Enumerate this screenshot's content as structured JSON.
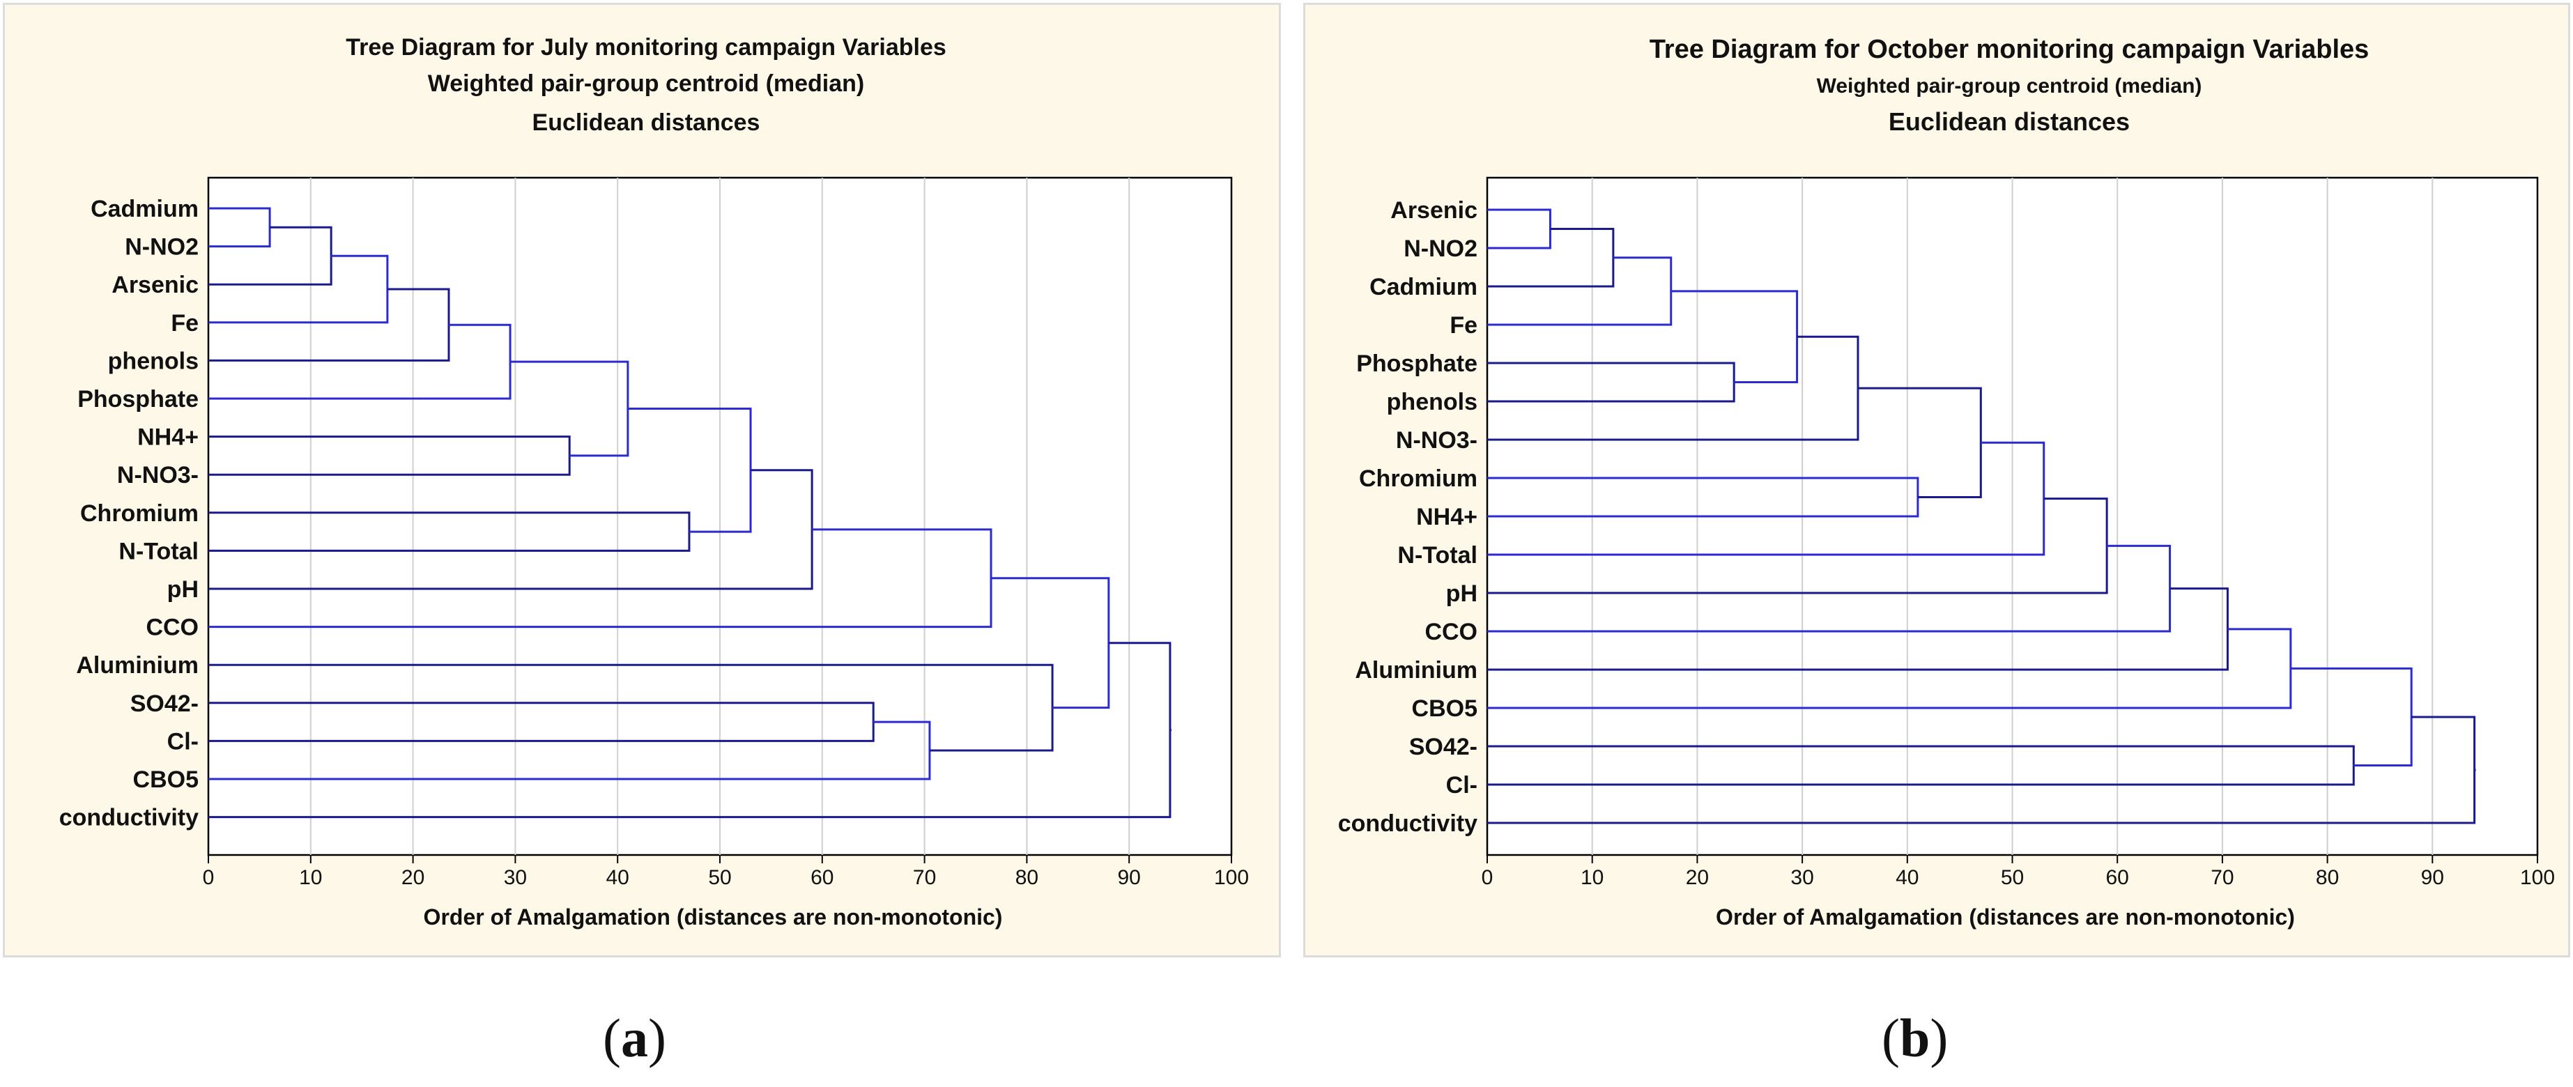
{
  "captions": {
    "a": "a",
    "b": "b"
  },
  "chart_data": [
    {
      "type": "dendrogram",
      "title": "Tree Diagram for July  monitoring campaign Variables",
      "subtitle1": "Weighted pair-group centroid (median)",
      "subtitle2": "Euclidean distances",
      "xlabel": "Order of Amalgamation (distances are non-monotonic)",
      "xlim": [
        0,
        100
      ],
      "xticks": [
        0,
        10,
        20,
        30,
        40,
        50,
        60,
        70,
        80,
        90,
        100
      ],
      "grid": true,
      "leaves": [
        "Cadmium",
        "N-NO2",
        "Arsenic",
        "Fe",
        "phenols",
        "Phosphate",
        "NH4+",
        "N-NO3-",
        "Chromium",
        "N-Total",
        "pH",
        "CCO",
        "Aluminium",
        "SO42-",
        "Cl-",
        "CBO5",
        "conductivity"
      ],
      "merges": [
        {
          "left": "Cadmium",
          "right": "N-NO2",
          "distance": 6
        },
        {
          "left": "m0",
          "right": "Arsenic",
          "distance": 12
        },
        {
          "left": "m1",
          "right": "Fe",
          "distance": 17.5
        },
        {
          "left": "m2",
          "right": "phenols",
          "distance": 23.5
        },
        {
          "left": "m3",
          "right": "Phosphate",
          "distance": 29.5
        },
        {
          "left": "NH4+",
          "right": "N-NO3-",
          "distance": 35.3
        },
        {
          "left": "m4",
          "right": "m5",
          "distance": 41
        },
        {
          "left": "Chromium",
          "right": "N-Total",
          "distance": 47
        },
        {
          "left": "m6",
          "right": "m7",
          "distance": 53
        },
        {
          "left": "m8",
          "right": "pH",
          "distance": 59
        },
        {
          "left": "m9",
          "right": "CCO",
          "distance": 76.5
        },
        {
          "left": "SO42-",
          "right": "Cl-",
          "distance": 65
        },
        {
          "left": "m11",
          "right": "CBO5",
          "distance": 70.5
        },
        {
          "left": "Aluminium",
          "right": "m12",
          "distance": 82.5
        },
        {
          "left": "m10",
          "right": "m13",
          "distance": 88
        },
        {
          "left": "m14",
          "right": "conductivity",
          "distance": 94
        }
      ]
    },
    {
      "type": "dendrogram",
      "title": "Tree Diagram for October monitoring campaign  Variables",
      "subtitle1": "Weighted pair-group centroid (median)",
      "subtitle2": "Euclidean distances",
      "xlabel": "Order of Amalgamation (distances are non-monotonic)",
      "xlim": [
        0,
        100
      ],
      "xticks": [
        0,
        10,
        20,
        30,
        40,
        50,
        60,
        70,
        80,
        90,
        100
      ],
      "grid": true,
      "leaves": [
        "Arsenic",
        "N-NO2",
        "Cadmium",
        "Fe",
        "Phosphate",
        "phenols",
        "N-NO3-",
        "Chromium",
        "NH4+",
        "N-Total",
        "pH",
        "CCO",
        "Aluminium",
        "CBO5",
        "SO42-",
        "Cl-",
        "conductivity"
      ],
      "merges": [
        {
          "left": "Arsenic",
          "right": "N-NO2",
          "distance": 6
        },
        {
          "left": "m0",
          "right": "Cadmium",
          "distance": 12
        },
        {
          "left": "m1",
          "right": "Fe",
          "distance": 17.5
        },
        {
          "left": "Phosphate",
          "right": "phenols",
          "distance": 23.5
        },
        {
          "left": "m2",
          "right": "m3",
          "distance": 29.5
        },
        {
          "left": "m4",
          "right": "N-NO3-",
          "distance": 35.3
        },
        {
          "left": "Chromium",
          "right": "NH4+",
          "distance": 41
        },
        {
          "left": "m5",
          "right": "m6",
          "distance": 47
        },
        {
          "left": "m7",
          "right": "N-Total",
          "distance": 53
        },
        {
          "left": "m8",
          "right": "pH",
          "distance": 59
        },
        {
          "left": "m9",
          "right": "CCO",
          "distance": 65
        },
        {
          "left": "m10",
          "right": "Aluminium",
          "distance": 70.5
        },
        {
          "left": "m11",
          "right": "CBO5",
          "distance": 76.5
        },
        {
          "left": "SO42-",
          "right": "Cl-",
          "distance": 82.5
        },
        {
          "left": "m12",
          "right": "m13",
          "distance": 88
        },
        {
          "left": "m14",
          "right": "conductivity",
          "distance": 94
        }
      ]
    }
  ]
}
